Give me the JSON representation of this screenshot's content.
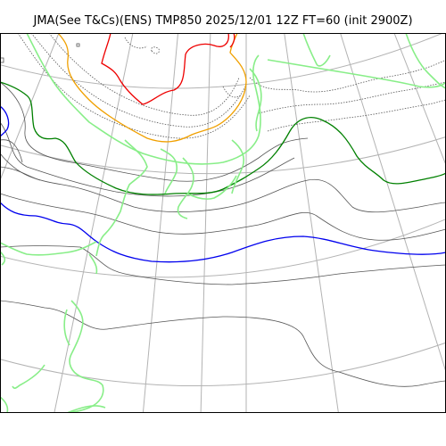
{
  "title": "JMA(See T&Cs)(ENS) TMP850 2025/12/01 12Z FT=60 (init 2900Z)",
  "colors": {
    "background": "#ffffff",
    "frame": "#000000",
    "graticule": "#b3b3b3",
    "isotherm": "#555555",
    "isotherm_dotted": "#555555",
    "isotherm_0c": "#0000ee",
    "isotherm_6c": "#008000",
    "isotherm_warm_orange": "#f0a000",
    "isotherm_warm_red": "#ee0000",
    "coastline": "#88ee88"
  },
  "legend": []
}
